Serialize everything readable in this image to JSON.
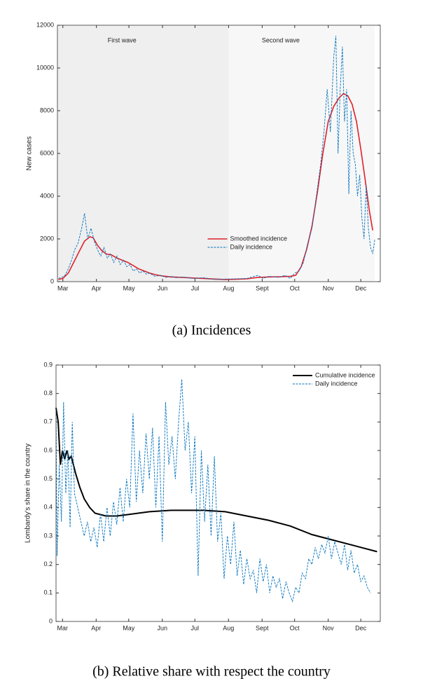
{
  "chart_data": [
    {
      "type": "line",
      "caption": "(a) Incidences",
      "ylabel": "New cases",
      "xlim": [
        -5,
        293
      ],
      "ylim": [
        0,
        12000
      ],
      "xticks": [
        {
          "value": 0,
          "label": "Mar"
        },
        {
          "value": 31,
          "label": "Apr"
        },
        {
          "value": 61,
          "label": "May"
        },
        {
          "value": 92,
          "label": "Jun"
        },
        {
          "value": 122,
          "label": "Jul"
        },
        {
          "value": 153,
          "label": "Aug"
        },
        {
          "value": 184,
          "label": "Sept"
        },
        {
          "value": 214,
          "label": "Oct"
        },
        {
          "value": 245,
          "label": "Nov"
        },
        {
          "value": 275,
          "label": "Dec"
        }
      ],
      "yticks": [
        0,
        2000,
        4000,
        6000,
        8000,
        10000,
        12000
      ],
      "grid": false,
      "legend": "lower center",
      "regions": [
        {
          "label": "First wave",
          "xlim": [
            -5,
            153
          ],
          "color": "#efefef"
        },
        {
          "label": "Second wave",
          "xlim": [
            153,
            288
          ],
          "color": "#f7f7f7"
        }
      ],
      "series": [
        {
          "name": "Smoothed incidence",
          "color": "#e0202a",
          "style": "solid",
          "width": 1.6,
          "x": [
            -4,
            0,
            5,
            10,
            15,
            20,
            25,
            28,
            32,
            36,
            40,
            45,
            50,
            55,
            60,
            65,
            70,
            75,
            80,
            85,
            90,
            95,
            100,
            110,
            120,
            130,
            140,
            150,
            160,
            170,
            180,
            190,
            200,
            210,
            215,
            220,
            225,
            230,
            235,
            240,
            245,
            250,
            255,
            259,
            263,
            267,
            271,
            275,
            279,
            283,
            286
          ],
          "values": [
            100,
            150,
            400,
            900,
            1400,
            1900,
            2100,
            2050,
            1700,
            1450,
            1300,
            1250,
            1100,
            1000,
            900,
            750,
            600,
            500,
            400,
            330,
            280,
            250,
            220,
            200,
            170,
            150,
            120,
            100,
            110,
            130,
            200,
            220,
            230,
            250,
            300,
            700,
            1500,
            2600,
            4200,
            6000,
            7500,
            8200,
            8600,
            8800,
            8700,
            8300,
            7500,
            6200,
            4800,
            3300,
            2400
          ]
        },
        {
          "name": "Daily incidence",
          "color": "#0072bd",
          "style": "dashed",
          "width": 0.9,
          "x": [
            -4,
            -1,
            2,
            5,
            8,
            11,
            14,
            17,
            20,
            23,
            26,
            29,
            32,
            35,
            38,
            41,
            44,
            47,
            50,
            53,
            56,
            59,
            62,
            65,
            68,
            71,
            74,
            77,
            80,
            85,
            90,
            95,
            100,
            105,
            110,
            120,
            130,
            140,
            150,
            160,
            170,
            180,
            185,
            190,
            200,
            205,
            210,
            214,
            218,
            222,
            226,
            230,
            234,
            238,
            241,
            244,
            247,
            250,
            252,
            254,
            256,
            258,
            260,
            262,
            264,
            266,
            268,
            270,
            272,
            274,
            276,
            278,
            280,
            282,
            284,
            286,
            288
          ],
          "values": [
            150,
            200,
            300,
            600,
            1000,
            1500,
            1800,
            2400,
            3200,
            2000,
            2500,
            1900,
            1500,
            1200,
            1600,
            1100,
            1300,
            900,
            1200,
            800,
            1000,
            700,
            800,
            500,
            600,
            400,
            500,
            350,
            400,
            250,
            300,
            200,
            250,
            180,
            220,
            150,
            180,
            100,
            120,
            130,
            150,
            300,
            150,
            250,
            200,
            300,
            150,
            400,
            500,
            900,
            1800,
            2500,
            4000,
            5500,
            7000,
            9000,
            7000,
            10500,
            11500,
            6000,
            9000,
            11000,
            7500,
            9000,
            4100,
            8000,
            6000,
            5500,
            4000,
            5000,
            3000,
            2000,
            4500,
            2500,
            1600,
            1300,
            2000
          ]
        }
      ]
    },
    {
      "type": "line",
      "caption": "(b) Relative share with respect the country",
      "ylabel": "Lombardy's share in the country",
      "xlim": [
        -6,
        293
      ],
      "ylim": [
        0,
        0.9
      ],
      "xticks": [
        {
          "value": 0,
          "label": "Mar"
        },
        {
          "value": 31,
          "label": "Apr"
        },
        {
          "value": 61,
          "label": "May"
        },
        {
          "value": 92,
          "label": "Jun"
        },
        {
          "value": 122,
          "label": "Jul"
        },
        {
          "value": 153,
          "label": "Aug"
        },
        {
          "value": 184,
          "label": "Sept"
        },
        {
          "value": 214,
          "label": "Oct"
        },
        {
          "value": 245,
          "label": "Nov"
        },
        {
          "value": 275,
          "label": "Dec"
        }
      ],
      "yticks": [
        0,
        0.1,
        0.2,
        0.3,
        0.4,
        0.5,
        0.6,
        0.7,
        0.8,
        0.9
      ],
      "grid": false,
      "legend": "upper right",
      "series": [
        {
          "name": "Cumulative incidence",
          "color": "#000000",
          "style": "solid",
          "width": 2,
          "x": [
            -6,
            -4,
            -2,
            0,
            2,
            4,
            6,
            8,
            12,
            16,
            20,
            25,
            30,
            40,
            50,
            60,
            80,
            100,
            130,
            150,
            170,
            190,
            210,
            230,
            250,
            270,
            290
          ],
          "values": [
            0.75,
            0.7,
            0.55,
            0.6,
            0.57,
            0.6,
            0.57,
            0.58,
            0.52,
            0.47,
            0.43,
            0.4,
            0.38,
            0.37,
            0.37,
            0.375,
            0.385,
            0.39,
            0.39,
            0.385,
            0.37,
            0.355,
            0.335,
            0.305,
            0.285,
            0.265,
            0.245
          ]
        },
        {
          "name": "Daily incidence",
          "color": "#0072bd",
          "style": "dashed",
          "width": 0.9,
          "x": [
            -6,
            -5,
            -3,
            -1,
            1,
            3,
            5,
            7,
            9,
            11,
            14,
            17,
            20,
            23,
            26,
            29,
            32,
            35,
            38,
            41,
            44,
            47,
            50,
            53,
            56,
            59,
            62,
            65,
            68,
            71,
            74,
            77,
            80,
            83,
            86,
            89,
            92,
            95,
            98,
            101,
            104,
            107,
            110,
            113,
            116,
            119,
            122,
            125,
            128,
            131,
            134,
            137,
            140,
            143,
            146,
            149,
            152,
            155,
            158,
            161,
            164,
            167,
            170,
            173,
            176,
            179,
            182,
            185,
            188,
            191,
            194,
            197,
            200,
            203,
            206,
            209,
            212,
            215,
            218,
            221,
            224,
            227,
            230,
            233,
            236,
            239,
            242,
            245,
            248,
            251,
            254,
            257,
            260,
            263,
            266,
            269,
            272,
            275,
            278,
            281,
            284
          ],
          "values": [
            0.75,
            0.23,
            0.55,
            0.35,
            0.77,
            0.45,
            0.6,
            0.33,
            0.7,
            0.45,
            0.4,
            0.35,
            0.3,
            0.35,
            0.28,
            0.33,
            0.26,
            0.38,
            0.28,
            0.4,
            0.3,
            0.42,
            0.34,
            0.47,
            0.35,
            0.5,
            0.4,
            0.73,
            0.42,
            0.6,
            0.45,
            0.66,
            0.5,
            0.68,
            0.4,
            0.65,
            0.28,
            0.77,
            0.55,
            0.65,
            0.5,
            0.7,
            0.85,
            0.6,
            0.7,
            0.45,
            0.65,
            0.16,
            0.6,
            0.35,
            0.55,
            0.3,
            0.58,
            0.28,
            0.38,
            0.15,
            0.3,
            0.2,
            0.35,
            0.16,
            0.25,
            0.13,
            0.22,
            0.15,
            0.18,
            0.1,
            0.22,
            0.14,
            0.2,
            0.1,
            0.16,
            0.12,
            0.15,
            0.08,
            0.14,
            0.1,
            0.07,
            0.12,
            0.1,
            0.17,
            0.15,
            0.22,
            0.2,
            0.26,
            0.22,
            0.27,
            0.24,
            0.3,
            0.22,
            0.28,
            0.24,
            0.2,
            0.27,
            0.18,
            0.25,
            0.17,
            0.2,
            0.14,
            0.16,
            0.12,
            0.1
          ]
        }
      ]
    }
  ]
}
